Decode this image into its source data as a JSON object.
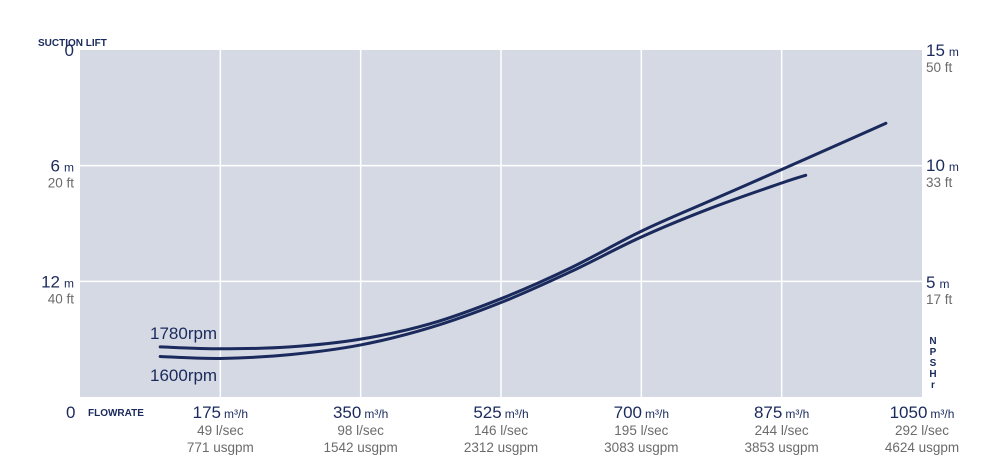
{
  "chart_data": {
    "type": "line",
    "title": "",
    "left_axis": {
      "title": "SUCTION LIFT",
      "ylim": [
        0,
        18
      ],
      "ticks": [
        {
          "value": 0,
          "main": "0",
          "unit": "",
          "sub": ""
        },
        {
          "value": 6,
          "main": "6",
          "unit": "m",
          "sub": "20 ft"
        },
        {
          "value": 12,
          "main": "12",
          "unit": "m",
          "sub": "40 ft"
        }
      ],
      "bottom_label": "0"
    },
    "right_axis": {
      "title_letters": [
        "N",
        "P",
        "S",
        "H",
        "r"
      ],
      "ticks": [
        {
          "main": "15",
          "unit": "m",
          "sub": "50 ft"
        },
        {
          "main": "10",
          "unit": "m",
          "sub": "33 ft"
        },
        {
          "main": "5",
          "unit": "m",
          "sub": "17 ft"
        }
      ]
    },
    "x_axis": {
      "title": "FLOWRATE",
      "xlim": [
        0,
        1050
      ],
      "ticks": [
        {
          "value": 175,
          "main": "175",
          "unit": "m³/h",
          "lps": "49 l/sec",
          "usgpm": "771 usgpm"
        },
        {
          "value": 350,
          "main": "350",
          "unit": "m³/h",
          "lps": "98 l/sec",
          "usgpm": "1542 usgpm"
        },
        {
          "value": 525,
          "main": "525",
          "unit": "m³/h",
          "lps": "146 l/sec",
          "usgpm": "2312 usgpm"
        },
        {
          "value": 700,
          "main": "700",
          "unit": "m³/h",
          "lps": "195 l/sec",
          "usgpm": "3083 usgpm"
        },
        {
          "value": 875,
          "main": "875",
          "unit": "m³/h",
          "lps": "244 l/sec",
          "usgpm": "3853 usgpm"
        },
        {
          "value": 1050,
          "main": "1050",
          "unit": "m³/h",
          "lps": "292 l/sec",
          "usgpm": "4624 usgpm"
        }
      ]
    },
    "series": [
      {
        "name": "1780rpm",
        "color": "#1b2a5c",
        "points": [
          [
            100,
            15.4
          ],
          [
            175,
            15.5
          ],
          [
            262,
            15.4
          ],
          [
            350,
            15.0
          ],
          [
            437,
            14.2
          ],
          [
            525,
            12.9
          ],
          [
            612,
            11.3
          ],
          [
            700,
            9.4
          ],
          [
            787,
            7.8
          ],
          [
            875,
            6.2
          ],
          [
            962,
            4.6
          ],
          [
            1005,
            3.8
          ]
        ]
      },
      {
        "name": "1600rpm",
        "color": "#1b2a5c",
        "points": [
          [
            100,
            15.9
          ],
          [
            175,
            16.0
          ],
          [
            262,
            15.8
          ],
          [
            350,
            15.3
          ],
          [
            437,
            14.4
          ],
          [
            525,
            13.1
          ],
          [
            612,
            11.5
          ],
          [
            700,
            9.7
          ],
          [
            787,
            8.2
          ],
          [
            875,
            6.9
          ],
          [
            905,
            6.5
          ]
        ]
      }
    ],
    "grid": true,
    "legend": "inline"
  },
  "colors": {
    "plot_bg": "#d5d9e4",
    "grid": "#ffffff",
    "navy": "#1b2a5c",
    "grey": "#6b6b6b"
  }
}
